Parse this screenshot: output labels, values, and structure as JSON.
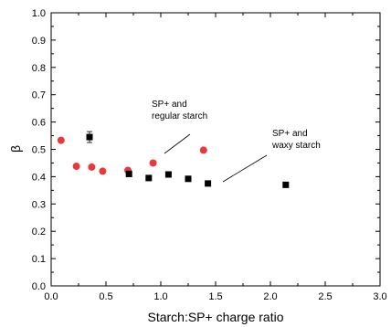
{
  "chart_data": {
    "type": "scatter",
    "xlabel": "Starch:SP+ charge ratio",
    "ylabel": "β",
    "xlim": [
      0.0,
      3.0
    ],
    "ylim": [
      0.0,
      1.0
    ],
    "xticks": [
      "0.0",
      "0.5",
      "1.0",
      "1.5",
      "2.0",
      "2.5",
      "3.0"
    ],
    "yticks": [
      "0.0",
      "0.1",
      "0.2",
      "0.3",
      "0.4",
      "0.5",
      "0.6",
      "0.7",
      "0.8",
      "0.9",
      "1.0"
    ],
    "grid": false,
    "series": [
      {
        "marker": "circle",
        "color": "#e8383b",
        "points": [
          {
            "x": 0.09,
            "y": 0.533
          },
          {
            "x": 0.23,
            "y": 0.438
          },
          {
            "x": 0.37,
            "y": 0.435
          },
          {
            "x": 0.47,
            "y": 0.42
          },
          {
            "x": 0.7,
            "y": 0.423
          },
          {
            "x": 0.93,
            "y": 0.45
          },
          {
            "x": 1.39,
            "y": 0.497
          }
        ]
      },
      {
        "marker": "square",
        "color": "#000000",
        "points": [
          {
            "x": 0.35,
            "y": 0.545,
            "err": 0.02
          },
          {
            "x": 0.71,
            "y": 0.41
          },
          {
            "x": 0.89,
            "y": 0.395
          },
          {
            "x": 1.07,
            "y": 0.408
          },
          {
            "x": 1.25,
            "y": 0.392
          },
          {
            "x": 1.43,
            "y": 0.375
          },
          {
            "x": 2.14,
            "y": 0.37
          }
        ]
      }
    ],
    "annotations": [
      {
        "lines": [
          "SP+ and",
          "regular starch"
        ]
      },
      {
        "lines": [
          "SP+ and",
          "waxy starch"
        ]
      }
    ]
  }
}
